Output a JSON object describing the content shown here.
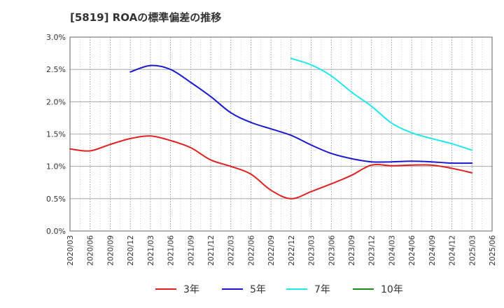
{
  "chart_data": {
    "type": "line",
    "title": "[5819]  ROAの標準偏差の推移",
    "xlabel": "",
    "ylabel": "",
    "ylim": [
      0,
      3.0
    ],
    "yticks": [
      "0.0%",
      "0.5%",
      "1.0%",
      "1.5%",
      "2.0%",
      "2.5%",
      "3.0%"
    ],
    "x": [
      "2020/03",
      "2020/06",
      "2020/09",
      "2020/12",
      "2021/03",
      "2021/06",
      "2021/09",
      "2021/12",
      "2022/03",
      "2022/06",
      "2022/09",
      "2022/12",
      "2023/03",
      "2023/06",
      "2023/09",
      "2023/12",
      "2024/03",
      "2024/06",
      "2024/09",
      "2024/12",
      "2025/03",
      "2025/06"
    ],
    "grid": true,
    "legend_position": "bottom",
    "series": [
      {
        "name": "3年",
        "color": "#e02020",
        "values": [
          1.27,
          1.24,
          1.34,
          1.43,
          1.47,
          1.4,
          1.29,
          1.1,
          1.0,
          0.88,
          0.63,
          0.5,
          0.61,
          0.73,
          0.86,
          1.02,
          1.01,
          1.02,
          1.02,
          0.97,
          0.9,
          null
        ]
      },
      {
        "name": "5年",
        "color": "#1a1acc",
        "values": [
          null,
          null,
          null,
          2.46,
          2.56,
          2.5,
          2.3,
          2.08,
          1.83,
          1.68,
          1.58,
          1.48,
          1.33,
          1.2,
          1.12,
          1.07,
          1.07,
          1.08,
          1.07,
          1.05,
          1.05,
          null
        ]
      },
      {
        "name": "7年",
        "color": "#22e6ee",
        "values": [
          null,
          null,
          null,
          null,
          null,
          null,
          null,
          null,
          null,
          null,
          null,
          2.67,
          2.57,
          2.4,
          2.15,
          1.93,
          1.67,
          1.52,
          1.43,
          1.35,
          1.25,
          null
        ]
      },
      {
        "name": "10年",
        "color": "#1a8c1a",
        "values": [
          null,
          null,
          null,
          null,
          null,
          null,
          null,
          null,
          null,
          null,
          null,
          null,
          null,
          null,
          null,
          null,
          null,
          null,
          null,
          null,
          null,
          null
        ]
      }
    ]
  }
}
